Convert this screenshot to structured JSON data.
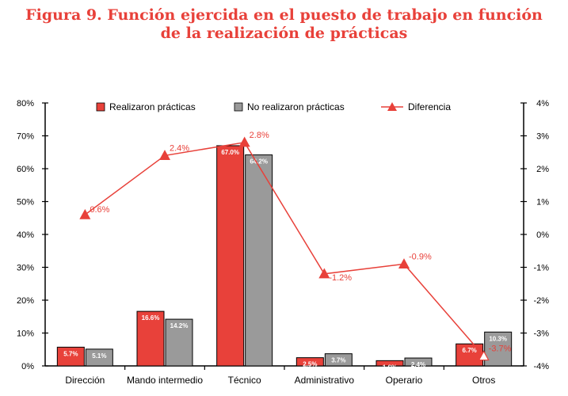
{
  "title": {
    "line1": "Figura 9. Función ejercida en el puesto de trabajo en función",
    "line2": "de la realización de prácticas"
  },
  "colors": {
    "title": "#e8413a",
    "series_practicas": "#e8413a",
    "series_no_practicas": "#9a9a9a",
    "diferencia": "#e8413a"
  },
  "chart_data": {
    "type": "bar",
    "categories": [
      "Dirección",
      "Mando intermedio",
      "Técnico",
      "Administrativo",
      "Operario",
      "Otros"
    ],
    "series": [
      {
        "name": "Realizaron prácticas",
        "axis": "left",
        "values": [
          5.7,
          16.6,
          67.0,
          2.5,
          1.6,
          6.7
        ],
        "labels": [
          "5.7%",
          "16.6%",
          "67.0%",
          "2.5%",
          "1.6%",
          "6.7%"
        ]
      },
      {
        "name": "No realizaron prácticas",
        "axis": "left",
        "values": [
          5.1,
          14.2,
          64.2,
          3.7,
          2.4,
          10.3
        ],
        "labels": [
          "5.1%",
          "14.2%",
          "64.2%",
          "3.7%",
          "2.4%",
          "10.3%"
        ]
      },
      {
        "name": "Diferencia",
        "type": "line",
        "axis": "right",
        "values": [
          0.6,
          2.4,
          2.8,
          -1.2,
          -0.9,
          -3.7
        ],
        "labels": [
          "0.6%",
          "2.4%",
          "2.8%",
          "-1.2%",
          "-0.9%",
          "-3.7%"
        ]
      }
    ],
    "ylim_left": [
      0,
      80
    ],
    "ylim_right": [
      -4,
      4
    ],
    "left_ticks": [
      "0%",
      "10%",
      "20%",
      "30%",
      "40%",
      "50%",
      "60%",
      "70%",
      "80%"
    ],
    "right_ticks": [
      "-4%",
      "-3%",
      "-2%",
      "-1%",
      "0%",
      "1%",
      "2%",
      "3%",
      "4%"
    ],
    "legend_position": "top",
    "grid": false
  }
}
